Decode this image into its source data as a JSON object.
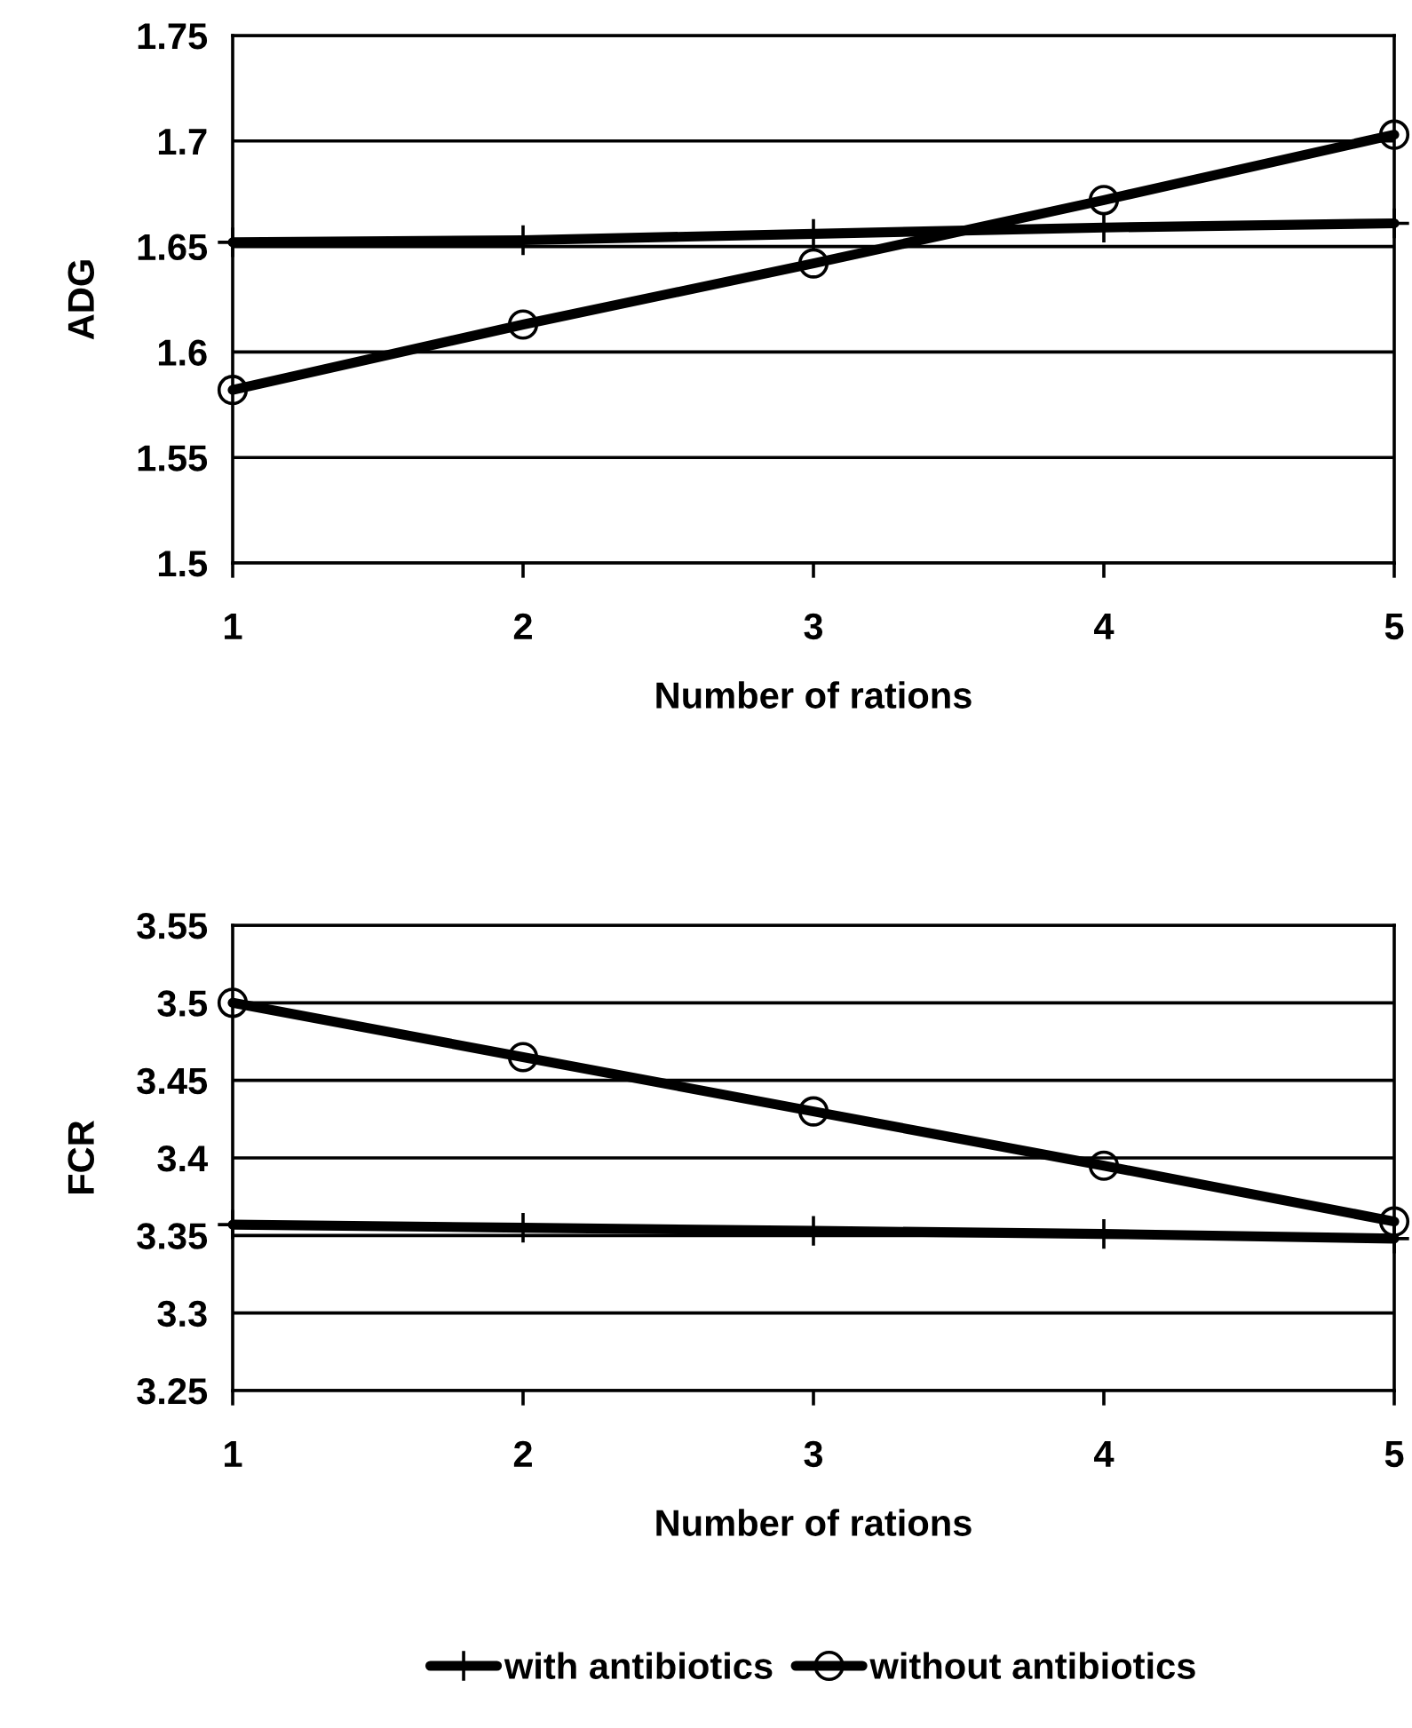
{
  "chart_data": [
    {
      "type": "line",
      "ylabel": "ADG",
      "xlabel": "Number of rations",
      "x": [
        1,
        2,
        3,
        4,
        5
      ],
      "xlim": [
        1,
        5
      ],
      "xticks": [
        1,
        2,
        3,
        4,
        5
      ],
      "ylim": [
        1.5,
        1.75
      ],
      "yticks": [
        1.5,
        1.55,
        1.6,
        1.65,
        1.7,
        1.75
      ],
      "grid": "y",
      "series": [
        {
          "color": "#000000",
          "marker": "cross",
          "values": [
            1.652,
            1.653,
            1.656,
            1.659,
            1.661
          ]
        },
        {
          "color": "#000000",
          "marker": "circle",
          "values": [
            1.582,
            1.613,
            1.642,
            1.672,
            1.703
          ]
        }
      ]
    },
    {
      "type": "line",
      "ylabel": "FCR",
      "xlabel": "Number of rations",
      "x": [
        1,
        2,
        3,
        4,
        5
      ],
      "xlim": [
        1,
        5
      ],
      "xticks": [
        1,
        2,
        3,
        4,
        5
      ],
      "ylim": [
        3.25,
        3.55
      ],
      "yticks": [
        3.25,
        3.3,
        3.35,
        3.4,
        3.45,
        3.5,
        3.55
      ],
      "grid": "y",
      "legend": "bottom",
      "series": [
        {
          "name": "with antibiotics",
          "color": "#000000",
          "marker": "cross",
          "values": [
            3.357,
            3.355,
            3.353,
            3.351,
            3.348
          ]
        },
        {
          "name": "without antibiotics",
          "color": "#000000",
          "marker": "circle",
          "values": [
            3.5,
            3.465,
            3.43,
            3.395,
            3.359
          ]
        }
      ]
    }
  ]
}
